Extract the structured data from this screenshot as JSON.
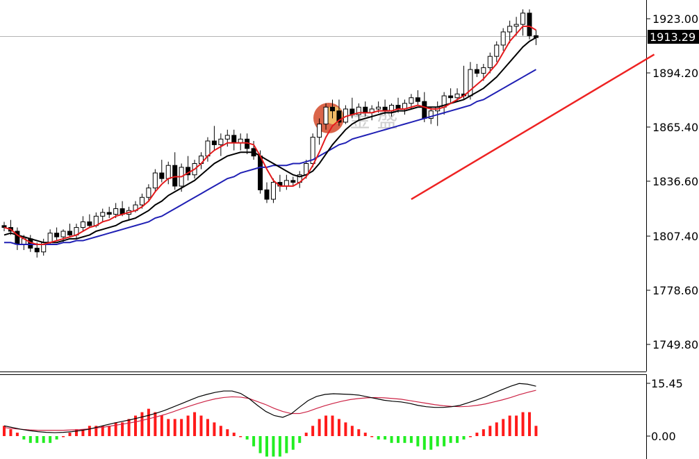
{
  "watermark": {
    "text": "金 盛"
  },
  "colors": {
    "bull": "#000000",
    "bear": "#000000",
    "ma_fast": "#e41a1c",
    "ma_mid": "#000000",
    "ma_slow": "#1f1fb4",
    "trendline": "#ee2222",
    "macd_pos": "#ff1a1a",
    "macd_neg": "#22ee22",
    "dif": "#000000",
    "dea": "#cc2244"
  },
  "chart_data": [
    {
      "type": "candlestick",
      "title": "",
      "xlabel": "",
      "ylabel": "",
      "ylim": [
        1735,
        1930
      ],
      "yticks": [
        "1923.00",
        "1894.20",
        "1865.40",
        "1836.60",
        "1807.40",
        "1778.60",
        "1749.80"
      ],
      "current_price": "1913.29",
      "grid": false,
      "candles": [
        [
          1813,
          1815,
          1810,
          1812
        ],
        [
          1812,
          1816,
          1808,
          1810
        ],
        [
          1810,
          1812,
          1800,
          1803
        ],
        [
          1803,
          1808,
          1800,
          1806
        ],
        [
          1806,
          1808,
          1799,
          1801
        ],
        [
          1801,
          1804,
          1796,
          1799
        ],
        [
          1799,
          1806,
          1797,
          1804
        ],
        [
          1804,
          1811,
          1803,
          1809
        ],
        [
          1809,
          1812,
          1805,
          1807
        ],
        [
          1807,
          1811,
          1804,
          1810
        ],
        [
          1810,
          1814,
          1807,
          1808
        ],
        [
          1808,
          1814,
          1806,
          1812
        ],
        [
          1812,
          1818,
          1810,
          1815
        ],
        [
          1815,
          1819,
          1812,
          1813
        ],
        [
          1813,
          1820,
          1812,
          1818
        ],
        [
          1818,
          1822,
          1815,
          1820
        ],
        [
          1820,
          1823,
          1817,
          1819
        ],
        [
          1819,
          1825,
          1817,
          1822
        ],
        [
          1822,
          1826,
          1818,
          1819
        ],
        [
          1819,
          1823,
          1816,
          1821
        ],
        [
          1821,
          1826,
          1820,
          1824
        ],
        [
          1824,
          1830,
          1822,
          1828
        ],
        [
          1828,
          1835,
          1826,
          1833
        ],
        [
          1833,
          1843,
          1831,
          1841
        ],
        [
          1841,
          1848,
          1836,
          1838
        ],
        [
          1838,
          1847,
          1835,
          1845
        ],
        [
          1845,
          1852,
          1832,
          1834
        ],
        [
          1834,
          1846,
          1831,
          1844
        ],
        [
          1844,
          1850,
          1837,
          1840
        ],
        [
          1840,
          1848,
          1838,
          1846
        ],
        [
          1846,
          1852,
          1843,
          1850
        ],
        [
          1850,
          1860,
          1847,
          1858
        ],
        [
          1858,
          1866,
          1853,
          1856
        ],
        [
          1856,
          1862,
          1850,
          1859
        ],
        [
          1859,
          1864,
          1855,
          1861
        ],
        [
          1861,
          1864,
          1853,
          1857
        ],
        [
          1857,
          1862,
          1853,
          1859
        ],
        [
          1859,
          1862,
          1851,
          1854
        ],
        [
          1854,
          1858,
          1848,
          1850
        ],
        [
          1850,
          1853,
          1830,
          1832
        ],
        [
          1832,
          1836,
          1825,
          1827
        ],
        [
          1827,
          1838,
          1825,
          1836
        ],
        [
          1836,
          1840,
          1831,
          1834
        ],
        [
          1834,
          1840,
          1832,
          1837
        ],
        [
          1837,
          1839,
          1834,
          1836
        ],
        [
          1836,
          1842,
          1833,
          1840
        ],
        [
          1840,
          1848,
          1838,
          1846
        ],
        [
          1846,
          1862,
          1844,
          1860
        ],
        [
          1860,
          1870,
          1856,
          1867
        ],
        [
          1867,
          1878,
          1864,
          1876
        ],
        [
          1876,
          1880,
          1870,
          1874
        ],
        [
          1874,
          1880,
          1866,
          1868
        ],
        [
          1868,
          1877,
          1867,
          1875
        ],
        [
          1875,
          1881,
          1870,
          1872
        ],
        [
          1872,
          1878,
          1869,
          1876
        ],
        [
          1876,
          1879,
          1871,
          1873
        ],
        [
          1873,
          1877,
          1869,
          1875
        ],
        [
          1875,
          1879,
          1873,
          1876
        ],
        [
          1876,
          1880,
          1872,
          1874
        ],
        [
          1874,
          1878,
          1871,
          1877
        ],
        [
          1877,
          1881,
          1873,
          1875
        ],
        [
          1875,
          1880,
          1872,
          1878
        ],
        [
          1878,
          1883,
          1875,
          1881
        ],
        [
          1881,
          1885,
          1877,
          1879
        ],
        [
          1879,
          1884,
          1868,
          1870
        ],
        [
          1870,
          1876,
          1867,
          1874
        ],
        [
          1874,
          1879,
          1866,
          1876
        ],
        [
          1876,
          1884,
          1872,
          1882
        ],
        [
          1882,
          1886,
          1878,
          1881
        ],
        [
          1881,
          1886,
          1879,
          1883
        ],
        [
          1883,
          1898,
          1880,
          1882
        ],
        [
          1882,
          1900,
          1880,
          1896
        ],
        [
          1896,
          1899,
          1892,
          1894
        ],
        [
          1894,
          1899,
          1890,
          1897
        ],
        [
          1897,
          1905,
          1894,
          1903
        ],
        [
          1903,
          1911,
          1900,
          1909
        ],
        [
          1909,
          1918,
          1906,
          1916
        ],
        [
          1916,
          1922,
          1910,
          1919
        ],
        [
          1919,
          1924,
          1914,
          1920
        ],
        [
          1920,
          1928,
          1914,
          1926
        ],
        [
          1926,
          1928,
          1912,
          1914
        ],
        [
          1914,
          1917,
          1909,
          1913
        ]
      ],
      "ma_fast": [
        1812,
        1811,
        1808,
        1806,
        1804,
        1803,
        1803,
        1804,
        1805,
        1806,
        1807,
        1808,
        1810,
        1812,
        1813,
        1815,
        1816,
        1818,
        1819,
        1820,
        1821,
        1823,
        1826,
        1831,
        1835,
        1838,
        1839,
        1839,
        1841,
        1843,
        1846,
        1850,
        1853,
        1855,
        1857,
        1857,
        1857,
        1857,
        1856,
        1850,
        1843,
        1837,
        1834,
        1834,
        1834,
        1836,
        1839,
        1845,
        1852,
        1860,
        1866,
        1869,
        1871,
        1872,
        1873,
        1873,
        1873,
        1874,
        1874,
        1874,
        1875,
        1875,
        1876,
        1877,
        1876,
        1875,
        1875,
        1876,
        1878,
        1880,
        1882,
        1885,
        1888,
        1891,
        1895,
        1899,
        1905,
        1911,
        1915,
        1919,
        1919,
        1917
      ],
      "ma_mid": [
        1808,
        1809,
        1808,
        1807,
        1806,
        1805,
        1804,
        1804,
        1804,
        1805,
        1806,
        1806,
        1807,
        1808,
        1810,
        1811,
        1812,
        1813,
        1815,
        1816,
        1817,
        1819,
        1821,
        1824,
        1826,
        1829,
        1831,
        1833,
        1835,
        1837,
        1840,
        1843,
        1846,
        1848,
        1850,
        1851,
        1852,
        1852,
        1852,
        1850,
        1848,
        1846,
        1844,
        1842,
        1840,
        1839,
        1840,
        1842,
        1846,
        1851,
        1856,
        1860,
        1864,
        1867,
        1869,
        1870,
        1871,
        1872,
        1873,
        1873,
        1874,
        1874,
        1875,
        1876,
        1876,
        1876,
        1876,
        1877,
        1878,
        1879,
        1880,
        1882,
        1884,
        1886,
        1889,
        1892,
        1896,
        1900,
        1904,
        1908,
        1911,
        1913
      ],
      "ma_slow": [
        1804,
        1804,
        1803,
        1803,
        1803,
        1803,
        1803,
        1803,
        1803,
        1804,
        1804,
        1805,
        1805,
        1806,
        1807,
        1808,
        1809,
        1810,
        1811,
        1812,
        1813,
        1814,
        1815,
        1817,
        1818,
        1820,
        1822,
        1824,
        1826,
        1828,
        1830,
        1832,
        1834,
        1836,
        1838,
        1839,
        1841,
        1842,
        1843,
        1844,
        1844,
        1845,
        1845,
        1845,
        1846,
        1846,
        1847,
        1848,
        1850,
        1852,
        1854,
        1856,
        1857,
        1859,
        1860,
        1861,
        1862,
        1863,
        1864,
        1865,
        1866,
        1867,
        1868,
        1869,
        1870,
        1871,
        1872,
        1873,
        1874,
        1875,
        1876,
        1877,
        1879,
        1880,
        1882,
        1884,
        1886,
        1888,
        1890,
        1892,
        1894,
        1896
      ],
      "trendline": {
        "from": [
          62,
          1827
        ],
        "to": [
          99,
          1904
        ]
      }
    },
    {
      "type": "histogram",
      "title": "",
      "ylim": [
        -7,
        17
      ],
      "yticks": [
        "15.45",
        "0.00"
      ],
      "bars": [
        3,
        2,
        1,
        -1,
        -2,
        -2,
        -2,
        -2,
        -1,
        0,
        1,
        2,
        2,
        3,
        3,
        3,
        3,
        4,
        4,
        5,
        6,
        7,
        8,
        7,
        6,
        5,
        5,
        5,
        6,
        7,
        6,
        5,
        4,
        3,
        2,
        1,
        0,
        -1,
        -3,
        -5,
        -6,
        -6,
        -6,
        -5,
        -4,
        -2,
        1,
        3,
        5,
        6,
        6,
        5,
        4,
        3,
        2,
        1,
        0,
        -1,
        -1,
        -2,
        -2,
        -2,
        -2,
        -3,
        -4,
        -4,
        -3,
        -3,
        -2,
        -2,
        -1,
        0,
        1,
        2,
        3,
        4,
        5,
        6,
        6,
        7,
        7,
        3
      ],
      "dif": [
        3,
        2.5,
        2,
        1.6,
        1.3,
        1.1,
        1,
        1.1,
        1.3,
        1.6,
        2,
        2.6,
        3.2,
        3.8,
        4.3,
        4.8,
        5.4,
        6,
        6.7,
        7.5,
        8.5,
        9.5,
        10.5,
        11.5,
        12.2,
        12.8,
        13.2,
        13.2,
        12.5,
        11,
        9,
        7.2,
        6,
        5.5,
        6.5,
        8.5,
        10.4,
        11.6,
        12.2,
        12.4,
        12.3,
        12.2,
        12,
        11.5,
        11,
        10.5,
        10.2,
        10,
        9.6,
        9,
        8.6,
        8.4,
        8.4,
        8.6,
        9,
        9.8,
        10.6,
        11.5,
        12.6,
        13.6,
        14.6,
        15.4,
        15.2,
        14.6
      ],
      "dea": [
        2.5,
        2.2,
        2,
        1.8,
        1.7,
        1.7,
        1.7,
        1.7,
        1.8,
        1.9,
        2.1,
        2.4,
        2.7,
        3.1,
        3.5,
        3.9,
        4.4,
        5,
        5.6,
        6.3,
        7.1,
        8,
        8.8,
        9.6,
        10.3,
        10.9,
        11.3,
        11.5,
        11.4,
        11,
        10.1,
        9.2,
        8.1,
        7.2,
        6.6,
        6.6,
        7.2,
        8.1,
        8.9,
        9.6,
        10.2,
        10.7,
        11,
        11.2,
        11.3,
        11.2,
        11,
        10.8,
        10.4,
        10,
        9.6,
        9.2,
        8.9,
        8.7,
        8.6,
        8.7,
        9,
        9.4,
        10,
        10.6,
        11.3,
        12.1,
        12.8,
        13.4
      ]
    }
  ]
}
